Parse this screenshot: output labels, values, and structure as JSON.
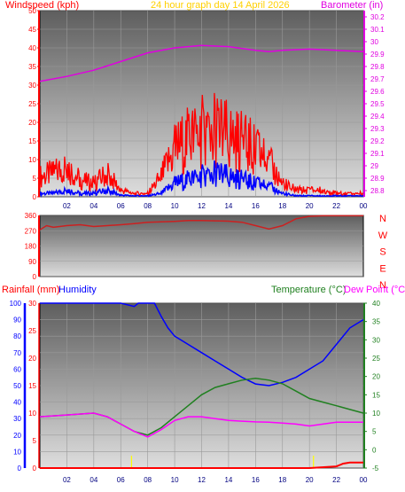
{
  "header": {
    "left_label": "Windspeed (kph)",
    "center_label": "24 hour graph day   14 April 2026",
    "right_label": "Barometer (in)"
  },
  "lower_header": {
    "rain_label": "Rainfall (mm)",
    "humidity_label": "Humidity",
    "temp_label": "Temperature (°C)",
    "dew_label": "Dew Point (°C)"
  },
  "colors": {
    "wind_gust": "#ff0000",
    "wind_avg": "#0000ff",
    "barometer": "#e000e0",
    "wind_dir": "#cc2020",
    "humidity": "#0000ff",
    "temperature": "#208020",
    "dew_point": "#ff00ff",
    "rainfall": "#ff0000",
    "rain_rate_marker": "#ffff00",
    "title": "#ffd000"
  },
  "chart_data": [
    {
      "type": "line",
      "title": "24 hour graph day   14 April 2026",
      "x_ticks": [
        "02",
        "04",
        "06",
        "08",
        "10",
        "12",
        "14",
        "16",
        "18",
        "20",
        "22",
        "00"
      ],
      "left_axis": {
        "label": "Windspeed (kph)",
        "ticks": [
          0,
          5,
          10,
          15,
          20,
          25,
          30,
          35,
          40,
          45,
          50
        ],
        "ylim": [
          0,
          50
        ]
      },
      "right_axis": {
        "label": "Barometer (in)",
        "ticks": [
          "28.8",
          "28.9",
          "29",
          "29.1",
          "29.2",
          "29.3",
          "29.4",
          "29.5",
          "29.6",
          "29.7",
          "29.8",
          "29.9",
          "30",
          "30.1",
          "30.2"
        ],
        "ylim": [
          28.75,
          30.25
        ]
      },
      "grid": true,
      "series": [
        {
          "name": "Windspeed (kph)",
          "axis": "left",
          "x": [
            0,
            1,
            2,
            3,
            4,
            5,
            6,
            7,
            8,
            9,
            10,
            11,
            12,
            13,
            14,
            15,
            16,
            17,
            18,
            19,
            20,
            21,
            22,
            23,
            24
          ],
          "values": [
            6,
            7,
            9,
            5,
            4,
            7,
            2,
            1,
            1,
            6,
            14,
            17,
            19,
            20,
            18,
            16,
            14,
            10,
            4,
            2,
            2,
            2,
            1,
            1,
            1
          ]
        },
        {
          "name": "Windspeed (kph)",
          "axis": "left",
          "x": [
            0,
            1,
            2,
            3,
            4,
            5,
            6,
            7,
            8,
            9,
            10,
            11,
            12,
            13,
            14,
            15,
            16,
            17,
            18,
            19,
            20,
            21,
            22,
            23,
            24
          ],
          "values": [
            1,
            1,
            2,
            1,
            1,
            2,
            0.5,
            0.3,
            0.3,
            1,
            4,
            5,
            6,
            7,
            6,
            5,
            4,
            3,
            1,
            0.3,
            0.3,
            0.3,
            0.3,
            0.3,
            0.3
          ]
        },
        {
          "name": "Barometer (in)",
          "axis": "right",
          "x": [
            0,
            2,
            4,
            6,
            8,
            10,
            12,
            14,
            16,
            17,
            18,
            20,
            22,
            24
          ],
          "values": [
            29.68,
            29.72,
            29.77,
            29.84,
            29.91,
            29.95,
            29.97,
            29.96,
            29.93,
            29.92,
            29.93,
            29.94,
            29.93,
            29.92
          ]
        }
      ]
    },
    {
      "type": "line",
      "y_ticks": [
        0,
        90,
        180,
        270,
        360
      ],
      "ylim": [
        0,
        360
      ],
      "direction_labels": [
        "N",
        "W",
        "S",
        "E",
        "N"
      ],
      "series": [
        {
          "name": "Wind Direction",
          "x": [
            0,
            0.5,
            1,
            2,
            3,
            4,
            5,
            6,
            7,
            8,
            9,
            10,
            11,
            12,
            13,
            14,
            15,
            16,
            17,
            18,
            19,
            20,
            21,
            22,
            23,
            24
          ],
          "values": [
            275,
            300,
            290,
            300,
            305,
            295,
            300,
            305,
            312,
            320,
            322,
            325,
            330,
            330,
            328,
            326,
            320,
            300,
            280,
            300,
            340,
            355,
            358,
            358,
            358,
            358
          ]
        }
      ]
    },
    {
      "type": "line",
      "x_ticks": [
        "02",
        "04",
        "06",
        "08",
        "10",
        "12",
        "14",
        "16",
        "18",
        "20",
        "22",
        "00"
      ],
      "rain_axis": {
        "label": "Rainfall (mm)",
        "ticks": [
          0,
          5,
          10,
          15,
          20,
          25,
          30
        ],
        "ylim": [
          0,
          30
        ]
      },
      "humidity_axis": {
        "label": "Humidity",
        "ticks": [
          0,
          10,
          20,
          30,
          40,
          50,
          60,
          70,
          80,
          90,
          100
        ],
        "ylim": [
          0,
          100
        ]
      },
      "temp_axis": {
        "label": "Temperature (°C)",
        "ticks": [
          -5,
          0,
          5,
          10,
          15,
          20,
          25,
          30,
          35,
          40
        ],
        "ylim": [
          -5,
          40
        ]
      },
      "grid": true,
      "series": [
        {
          "name": "Humidity",
          "axis": "humidity",
          "x": [
            0,
            2,
            4,
            6,
            7,
            7.3,
            8,
            8.5,
            9,
            9.5,
            10,
            11,
            12,
            13,
            14,
            15,
            16,
            17,
            18,
            19,
            20,
            21,
            22,
            23,
            24
          ],
          "values": [
            100,
            100,
            100,
            100,
            98,
            100,
            100,
            100,
            92,
            85,
            80,
            75,
            70,
            65,
            60,
            55,
            51,
            50,
            52,
            55,
            60,
            65,
            75,
            85,
            90
          ]
        },
        {
          "name": "Temperature (°C)",
          "axis": "temp",
          "x": [
            0,
            2,
            4,
            5,
            6,
            7,
            8,
            9,
            10,
            11,
            12,
            13,
            14,
            15,
            16,
            17,
            18,
            19,
            20,
            21,
            22,
            23,
            24
          ],
          "values": [
            9,
            9.5,
            10,
            9,
            7,
            5,
            4,
            6,
            9,
            12,
            15,
            17,
            18,
            19,
            19.5,
            19,
            18,
            16,
            14,
            13,
            12,
            11,
            10
          ]
        },
        {
          "name": "Dew Point (°C)",
          "axis": "temp",
          "x": [
            0,
            2,
            4,
            5,
            6,
            7,
            8,
            9,
            10,
            11,
            12,
            13,
            14,
            15,
            16,
            17,
            18,
            19,
            20,
            21,
            22,
            23,
            24
          ],
          "values": [
            9,
            9.5,
            10,
            9,
            7,
            5,
            3.5,
            5.5,
            8,
            9,
            9,
            8.5,
            8,
            7.8,
            7.6,
            7.5,
            7.3,
            7,
            6.5,
            7,
            7.5,
            7.5,
            7.5
          ]
        },
        {
          "name": "Rainfall (mm)",
          "axis": "rain",
          "x": [
            0,
            20,
            22,
            22.5,
            23,
            24
          ],
          "values": [
            0,
            0,
            0.3,
            0.8,
            1,
            1
          ]
        }
      ]
    }
  ]
}
